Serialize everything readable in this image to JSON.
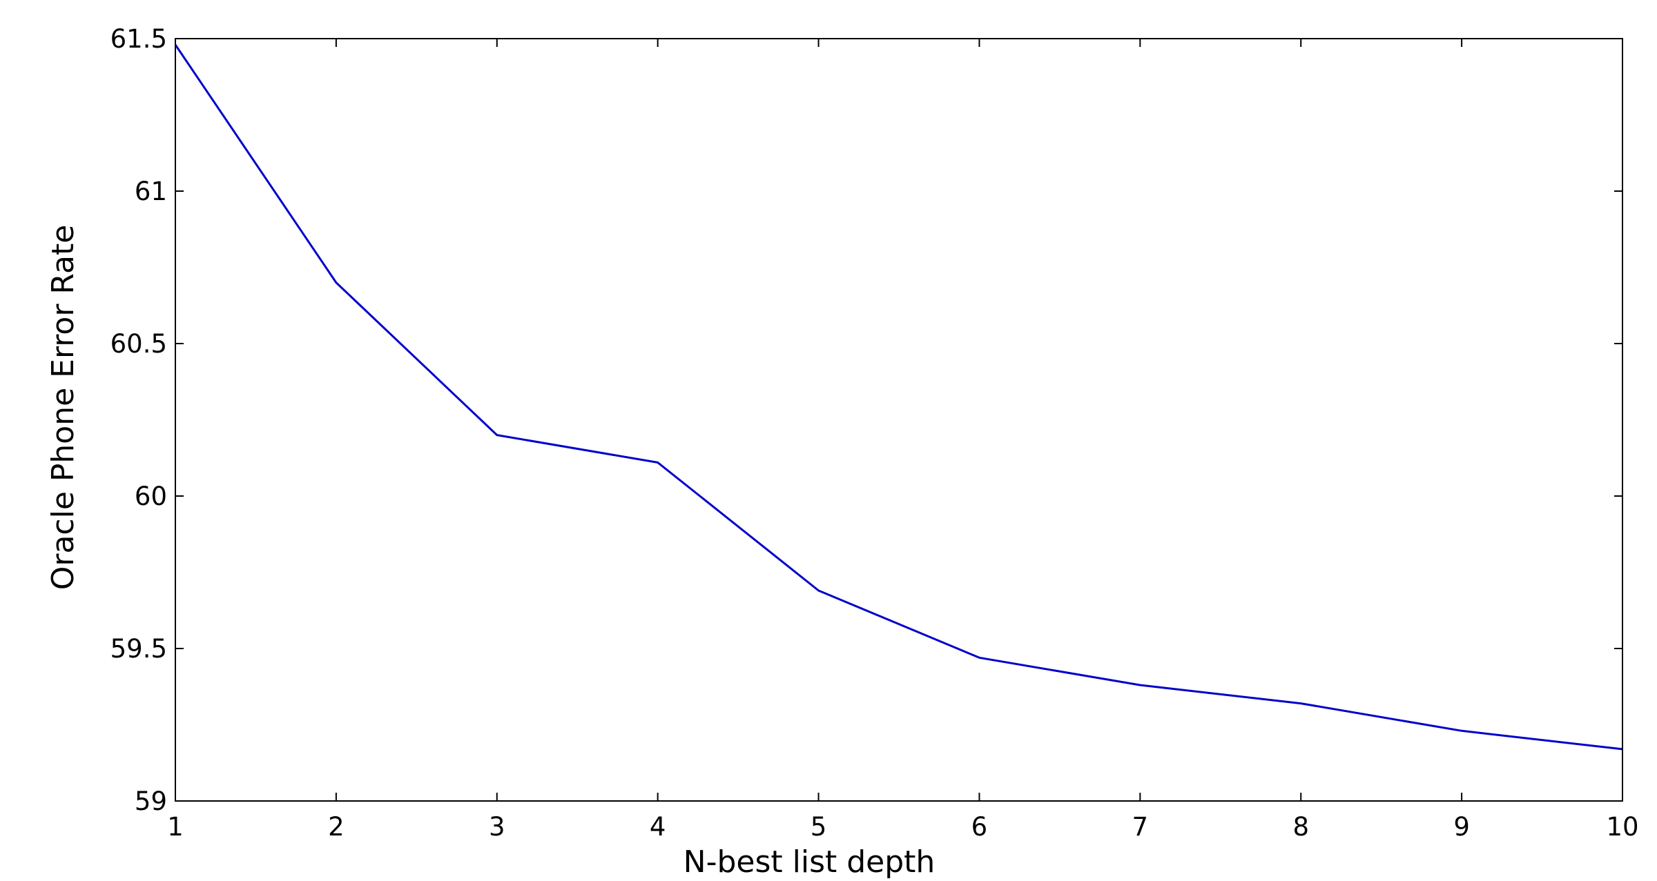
{
  "chart_data": {
    "type": "line",
    "title": "",
    "xlabel": "N-best list depth",
    "ylabel": "Oracle Phone Error Rate",
    "xlim": [
      1,
      10
    ],
    "ylim": [
      59,
      61.5
    ],
    "xticks": [
      1,
      2,
      3,
      4,
      5,
      6,
      7,
      8,
      9,
      10
    ],
    "xtick_labels": [
      "1",
      "2",
      "3",
      "4",
      "5",
      "6",
      "7",
      "8",
      "9",
      "10"
    ],
    "yticks": [
      59,
      59.5,
      60,
      60.5,
      61,
      61.5
    ],
    "ytick_labels": [
      "59",
      "59.5",
      "60",
      "60.5",
      "61",
      "61.5"
    ],
    "grid": false,
    "legend": "none",
    "series": [
      {
        "color": "#0000cc",
        "x": [
          1,
          2,
          3,
          4,
          5,
          6,
          7,
          8,
          9,
          10
        ],
        "y": [
          61.48,
          60.7,
          60.2,
          60.11,
          59.69,
          59.47,
          59.38,
          59.32,
          59.23,
          59.17
        ]
      }
    ]
  }
}
